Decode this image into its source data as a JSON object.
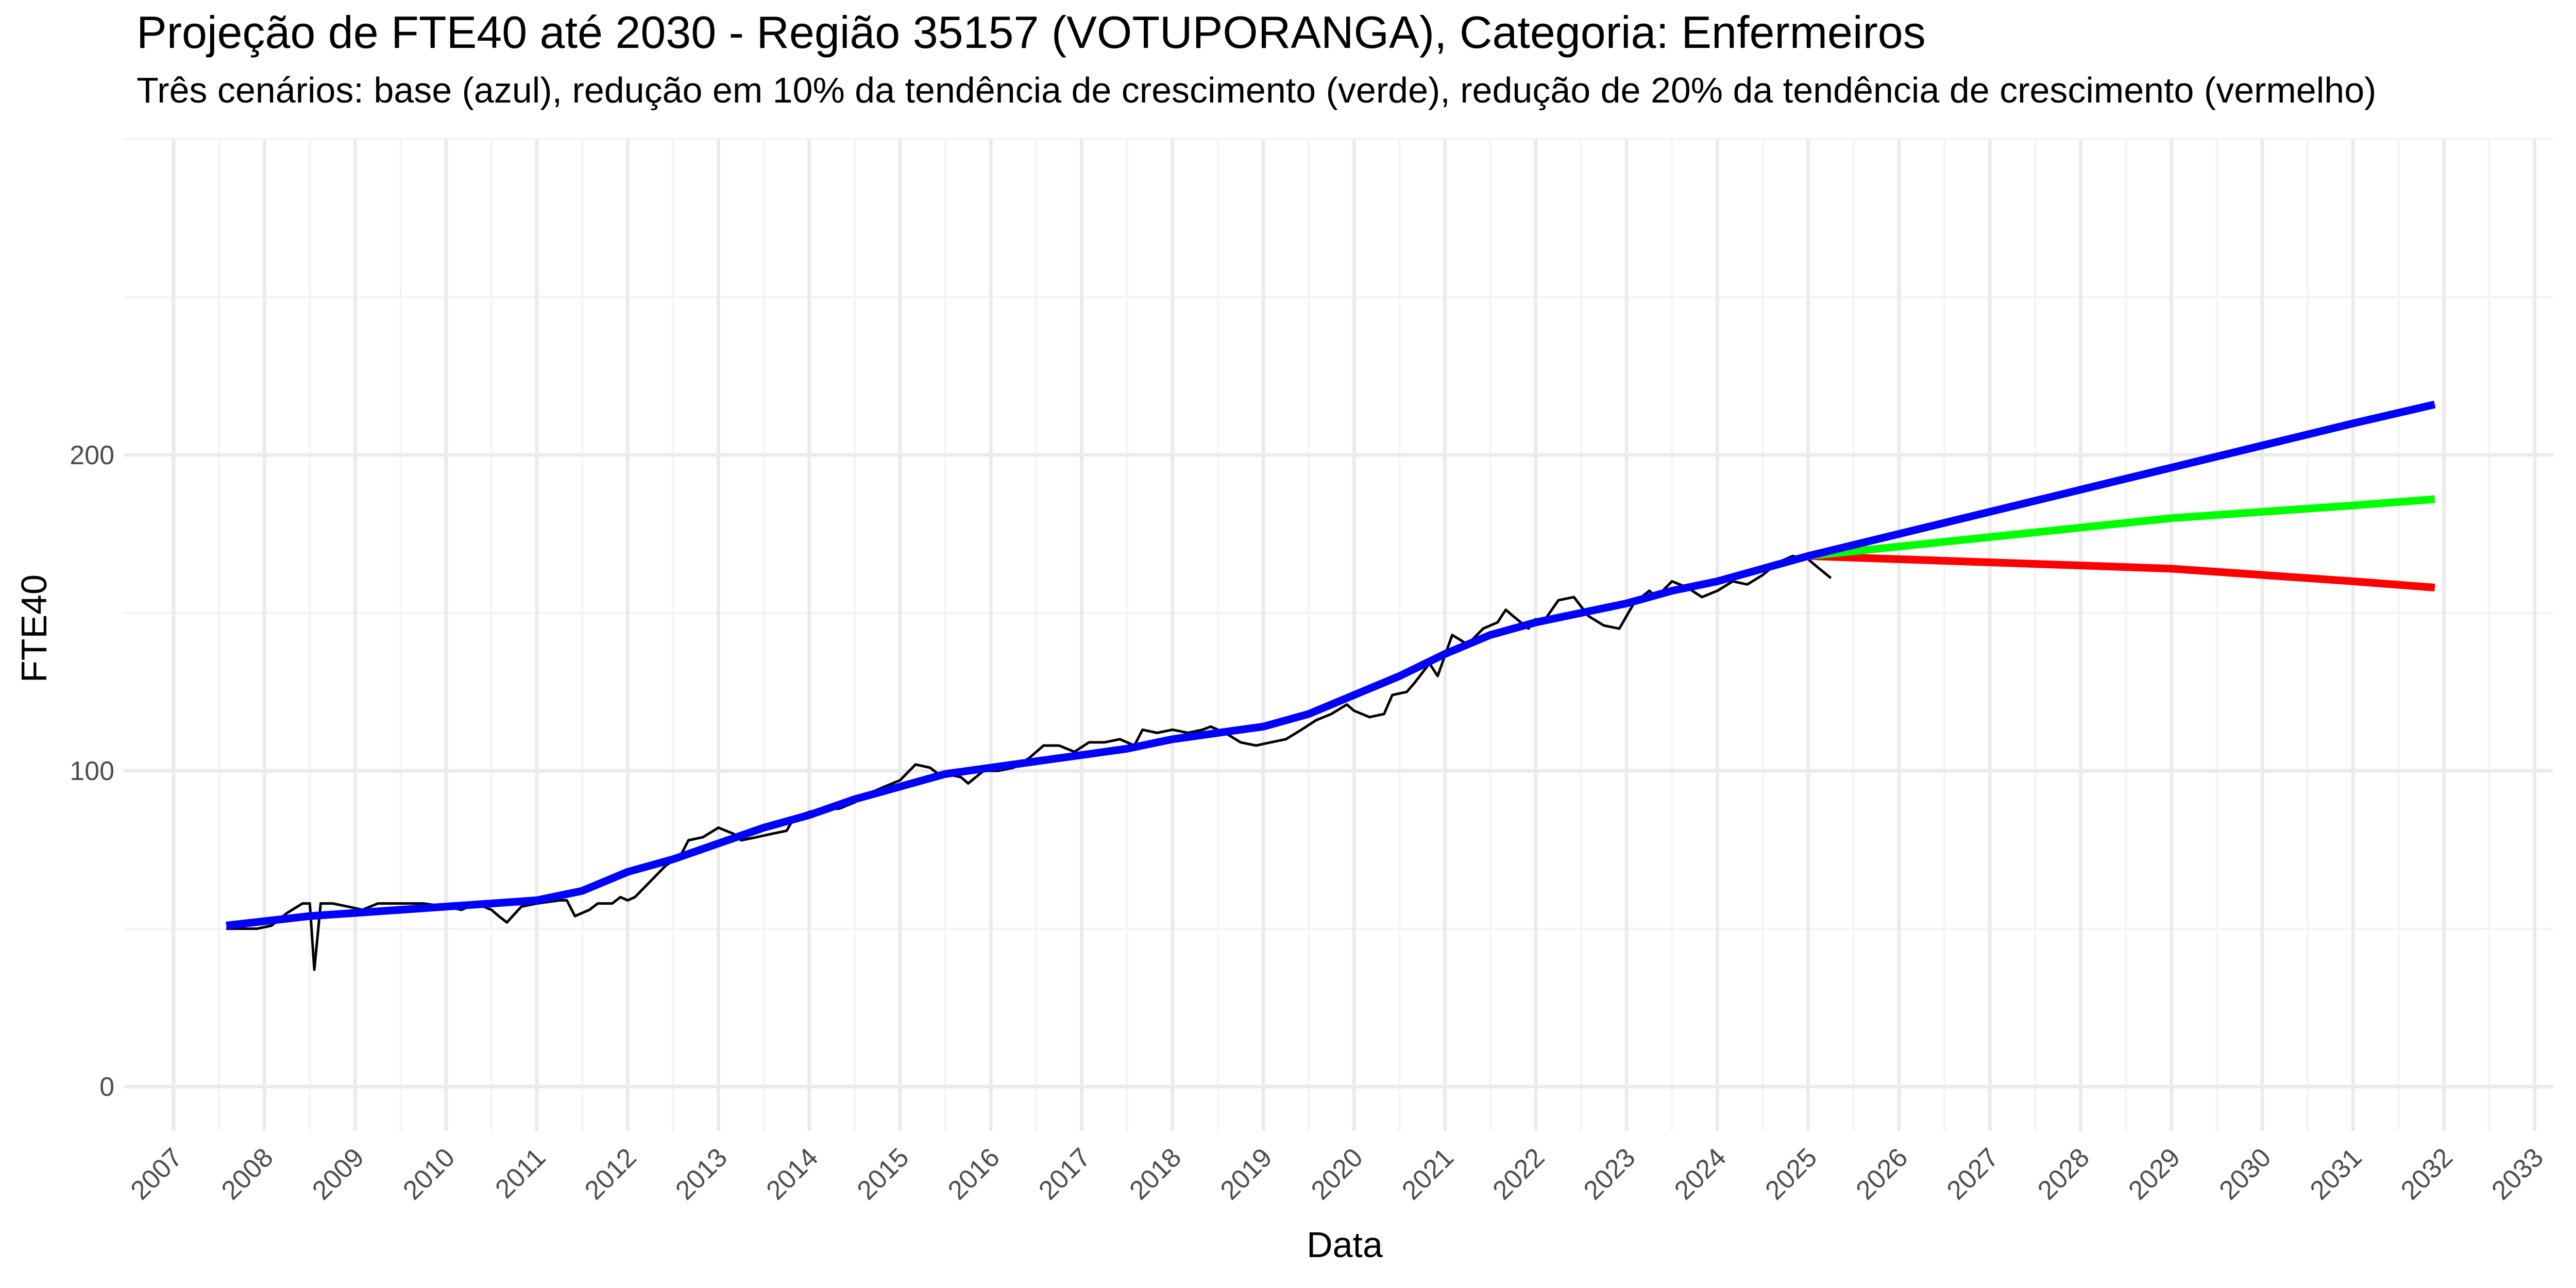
{
  "chart_data": {
    "type": "line",
    "title": "Projeção de FTE40 até 2030 - Região 35157 (VOTUPORANGA), Categoria: Enfermeiros",
    "subtitle": "Três cenários: base (azul), redução em 10% da tendência de crescimento (verde), redução de 20% da tendência de crescimento (vermelho)",
    "xlabel": "Data",
    "ylabel": "FTE40",
    "xlim": [
      2006.45,
      2033.2
    ],
    "ylim": [
      -14,
      300
    ],
    "x_ticks": [
      2007,
      2008,
      2009,
      2010,
      2011,
      2012,
      2013,
      2014,
      2015,
      2016,
      2017,
      2018,
      2019,
      2020,
      2021,
      2022,
      2023,
      2024,
      2025,
      2026,
      2027,
      2028,
      2029,
      2030,
      2031,
      2032,
      2033
    ],
    "y_ticks": [
      0,
      100,
      200
    ],
    "grid": true,
    "legend": "none",
    "series": [
      {
        "color": "#000000",
        "style": "observed",
        "points": [
          [
            2007.58,
            50
          ],
          [
            2007.75,
            50
          ],
          [
            2007.92,
            50
          ],
          [
            2008.08,
            51
          ],
          [
            2008.25,
            55
          ],
          [
            2008.42,
            58
          ],
          [
            2008.5,
            58
          ],
          [
            2008.55,
            37
          ],
          [
            2008.62,
            58
          ],
          [
            2008.75,
            58
          ],
          [
            2008.92,
            57
          ],
          [
            2009.08,
            56
          ],
          [
            2009.25,
            58
          ],
          [
            2009.5,
            58
          ],
          [
            2009.75,
            58
          ],
          [
            2010.0,
            57
          ],
          [
            2010.17,
            56
          ],
          [
            2010.33,
            58
          ],
          [
            2010.5,
            56
          ],
          [
            2010.58,
            54
          ],
          [
            2010.67,
            52
          ],
          [
            2010.83,
            57
          ],
          [
            2011.0,
            58
          ],
          [
            2011.25,
            59
          ],
          [
            2011.33,
            59
          ],
          [
            2011.42,
            54
          ],
          [
            2011.58,
            56
          ],
          [
            2011.67,
            58
          ],
          [
            2011.83,
            58
          ],
          [
            2011.92,
            60
          ],
          [
            2012.0,
            59
          ],
          [
            2012.08,
            60
          ],
          [
            2012.25,
            65
          ],
          [
            2012.42,
            70
          ],
          [
            2012.58,
            73
          ],
          [
            2012.67,
            78
          ],
          [
            2012.83,
            79
          ],
          [
            2013.0,
            82
          ],
          [
            2013.17,
            80
          ],
          [
            2013.25,
            78
          ],
          [
            2013.42,
            79
          ],
          [
            2013.58,
            80
          ],
          [
            2013.75,
            81
          ],
          [
            2013.83,
            85
          ],
          [
            2014.0,
            87
          ],
          [
            2014.17,
            88
          ],
          [
            2014.33,
            88
          ],
          [
            2014.5,
            90
          ],
          [
            2014.67,
            93
          ],
          [
            2014.83,
            95
          ],
          [
            2015.0,
            97
          ],
          [
            2015.17,
            102
          ],
          [
            2015.33,
            101
          ],
          [
            2015.42,
            99
          ],
          [
            2015.5,
            99
          ],
          [
            2015.67,
            98
          ],
          [
            2015.75,
            96
          ],
          [
            2015.92,
            100
          ],
          [
            2016.08,
            100
          ],
          [
            2016.25,
            101
          ],
          [
            2016.42,
            104
          ],
          [
            2016.58,
            108
          ],
          [
            2016.75,
            108
          ],
          [
            2016.92,
            106
          ],
          [
            2017.08,
            109
          ],
          [
            2017.25,
            109
          ],
          [
            2017.42,
            110
          ],
          [
            2017.58,
            108
          ],
          [
            2017.67,
            113
          ],
          [
            2017.83,
            112
          ],
          [
            2018.0,
            113
          ],
          [
            2018.17,
            112
          ],
          [
            2018.33,
            113
          ],
          [
            2018.42,
            114
          ],
          [
            2018.58,
            112
          ],
          [
            2018.75,
            109
          ],
          [
            2018.92,
            108
          ],
          [
            2019.08,
            109
          ],
          [
            2019.25,
            110
          ],
          [
            2019.42,
            113
          ],
          [
            2019.58,
            116
          ],
          [
            2019.75,
            118
          ],
          [
            2019.92,
            121
          ],
          [
            2020.0,
            119
          ],
          [
            2020.17,
            117
          ],
          [
            2020.33,
            118
          ],
          [
            2020.42,
            124
          ],
          [
            2020.58,
            125
          ],
          [
            2020.67,
            128
          ],
          [
            2020.83,
            134
          ],
          [
            2020.92,
            130
          ],
          [
            2021.08,
            143
          ],
          [
            2021.25,
            140
          ],
          [
            2021.42,
            145
          ],
          [
            2021.58,
            147
          ],
          [
            2021.67,
            151
          ],
          [
            2021.75,
            149
          ],
          [
            2021.92,
            145
          ],
          [
            2022.0,
            148
          ],
          [
            2022.08,
            147
          ],
          [
            2022.25,
            154
          ],
          [
            2022.42,
            155
          ],
          [
            2022.58,
            149
          ],
          [
            2022.75,
            146
          ],
          [
            2022.92,
            145
          ],
          [
            2023.08,
            153
          ],
          [
            2023.25,
            157
          ],
          [
            2023.33,
            155
          ],
          [
            2023.5,
            160
          ],
          [
            2023.67,
            158
          ],
          [
            2023.83,
            155
          ],
          [
            2024.0,
            157
          ],
          [
            2024.17,
            160
          ],
          [
            2024.33,
            159
          ],
          [
            2024.5,
            162
          ],
          [
            2024.67,
            166
          ],
          [
            2024.83,
            168
          ],
          [
            2025.0,
            167
          ],
          [
            2025.08,
            165
          ],
          [
            2025.25,
            161
          ]
        ]
      },
      {
        "color": "#0000ff",
        "style": "trend-base",
        "points": [
          [
            2007.58,
            51
          ],
          [
            2008.5,
            54
          ],
          [
            2009.5,
            56
          ],
          [
            2010.5,
            58
          ],
          [
            2011.0,
            59
          ],
          [
            2011.5,
            62
          ],
          [
            2012.0,
            68
          ],
          [
            2012.5,
            72
          ],
          [
            2013.0,
            77
          ],
          [
            2013.5,
            82
          ],
          [
            2014.0,
            86
          ],
          [
            2014.5,
            91
          ],
          [
            2015.0,
            95
          ],
          [
            2015.5,
            99
          ],
          [
            2016.0,
            101
          ],
          [
            2016.5,
            103
          ],
          [
            2017.0,
            105
          ],
          [
            2017.5,
            107
          ],
          [
            2018.0,
            110
          ],
          [
            2018.5,
            112
          ],
          [
            2019.0,
            114
          ],
          [
            2019.5,
            118
          ],
          [
            2020.0,
            124
          ],
          [
            2020.5,
            130
          ],
          [
            2021.0,
            137
          ],
          [
            2021.5,
            143
          ],
          [
            2022.0,
            147
          ],
          [
            2022.5,
            150
          ],
          [
            2023.0,
            153
          ],
          [
            2023.5,
            157
          ],
          [
            2024.0,
            160
          ],
          [
            2024.5,
            164
          ],
          [
            2025.0,
            168
          ],
          [
            2026.0,
            175
          ],
          [
            2027.0,
            182
          ],
          [
            2028.0,
            189
          ],
          [
            2029.0,
            196
          ],
          [
            2030.0,
            203
          ],
          [
            2031.0,
            210
          ],
          [
            2031.9,
            216
          ]
        ]
      },
      {
        "color": "#00ff00",
        "style": "scenario-10",
        "points": [
          [
            2025.0,
            168
          ],
          [
            2026.0,
            171
          ],
          [
            2027.0,
            174
          ],
          [
            2028.0,
            177
          ],
          [
            2029.0,
            180
          ],
          [
            2030.0,
            182
          ],
          [
            2031.0,
            184
          ],
          [
            2031.9,
            186
          ]
        ]
      },
      {
        "color": "#ff0000",
        "style": "scenario-20",
        "points": [
          [
            2025.0,
            168
          ],
          [
            2026.0,
            167
          ],
          [
            2027.0,
            166
          ],
          [
            2028.0,
            165
          ],
          [
            2029.0,
            164
          ],
          [
            2030.0,
            162
          ],
          [
            2031.0,
            160
          ],
          [
            2031.9,
            158
          ]
        ]
      }
    ]
  }
}
